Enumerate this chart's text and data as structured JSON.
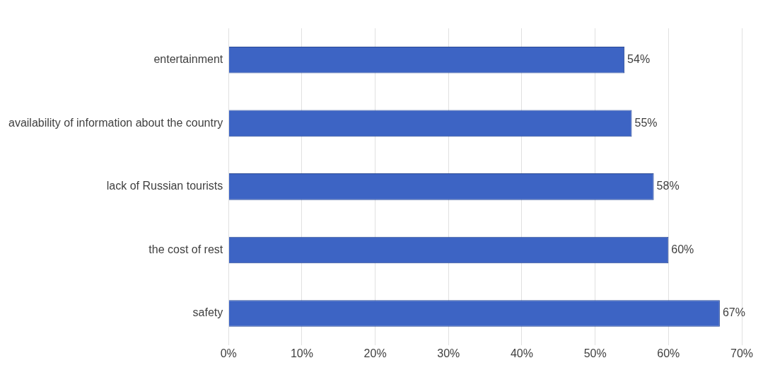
{
  "chart_data": {
    "type": "bar",
    "orientation": "horizontal",
    "categories": [
      "entertainment",
      "availability of information about the country",
      "lack of Russian tourists",
      "the cost of rest",
      "safety"
    ],
    "values": [
      54,
      55,
      58,
      60,
      67
    ],
    "value_labels": [
      "54%",
      "55%",
      "58%",
      "60%",
      "67%"
    ],
    "color": "#3d64c4",
    "xlim": [
      0,
      70
    ],
    "xticks": [
      {
        "value": 0,
        "label": "0%"
      },
      {
        "value": 10,
        "label": "10%"
      },
      {
        "value": 20,
        "label": "20%"
      },
      {
        "value": 30,
        "label": "30%"
      },
      {
        "value": 40,
        "label": "40%"
      },
      {
        "value": 50,
        "label": "50%"
      },
      {
        "value": 60,
        "label": "60%"
      },
      {
        "value": 70,
        "label": "70%"
      }
    ],
    "grid": "x",
    "legend": false
  }
}
